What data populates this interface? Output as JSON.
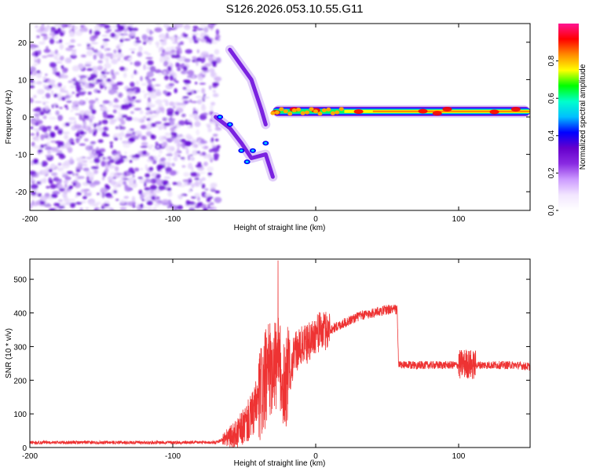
{
  "title": "S126.2026.053.10.55.G11",
  "colors": {
    "axis": "#000000",
    "snr_line": "#ee3333",
    "colorbar": [
      "#ffffff",
      "#f2e6ff",
      "#cc99ff",
      "#8a2be2",
      "#6600cc",
      "#0000ff",
      "#00bfff",
      "#00ffcc",
      "#00ff00",
      "#ffff00",
      "#ff8c00",
      "#ff0000",
      "#ff1493"
    ]
  },
  "chart_data": [
    {
      "type": "heatmap",
      "name": "spectrogram",
      "xlabel": "Height of straight line (km)",
      "ylabel": "Frequency (Hz)",
      "xlim": [
        -200,
        150
      ],
      "ylim": [
        -25,
        25
      ],
      "xticks": [
        -200,
        -100,
        0,
        100
      ],
      "yticks": [
        -20,
        -10,
        0,
        10,
        20
      ],
      "xtick_labels": [
        "-200",
        "-100",
        "0",
        "100"
      ],
      "ytick_labels": [
        "-20",
        "-10",
        "0",
        "10",
        "20"
      ],
      "colorbar": {
        "label": "Normalized spectral amplitude",
        "range": [
          0,
          1
        ],
        "ticks": [
          0,
          0.2,
          0.4,
          0.6,
          0.8
        ],
        "tick_labels": [
          "0.0",
          "0.2",
          "0.4",
          "0.6",
          "0.8"
        ]
      },
      "features": {
        "noise_region_x": [
          -200,
          -68
        ],
        "tone_center_hz": 1.5,
        "tone_x": [
          -30,
          150
        ],
        "upper_branch": [
          [
            -60,
            18
          ],
          [
            -45,
            10
          ],
          [
            -38,
            2
          ],
          [
            -35,
            -2
          ]
        ],
        "lower_branch": [
          [
            -70,
            0
          ],
          [
            -60,
            -3
          ],
          [
            -52,
            -7
          ],
          [
            -45,
            -11
          ],
          [
            -35,
            -10
          ],
          [
            -30,
            -16
          ]
        ],
        "tone_hotspots_x": [
          -28,
          -15,
          0,
          30,
          75,
          85,
          92,
          125,
          140
        ]
      }
    },
    {
      "type": "line",
      "name": "snr",
      "xlabel": "Height of straight line (km)",
      "ylabel": "SNR (10 * v/v)",
      "xlim": [
        -200,
        150
      ],
      "ylim": [
        0,
        560
      ],
      "xticks": [
        -200,
        -100,
        0,
        100
      ],
      "yticks": [
        0,
        100,
        200,
        300,
        400,
        500
      ],
      "xtick_labels": [
        "-200",
        "-100",
        "0",
        "100"
      ],
      "ytick_labels": [
        "0",
        "100",
        "200",
        "300",
        "400",
        "500"
      ],
      "series": [
        {
          "name": "SNR",
          "x": [
            -200,
            -150,
            -100,
            -70,
            -55,
            -45,
            -40,
            -35,
            -30,
            -25,
            -22,
            -18,
            -15,
            -10,
            -5,
            0,
            10,
            20,
            30,
            40,
            50,
            55,
            57,
            58,
            60,
            70,
            80,
            90,
            100,
            105,
            110,
            120,
            130,
            140,
            150
          ],
          "values": [
            15,
            15,
            15,
            15,
            40,
            90,
            140,
            200,
            260,
            230,
            200,
            220,
            280,
            300,
            310,
            340,
            350,
            370,
            390,
            400,
            410,
            410,
            410,
            245,
            245,
            245,
            245,
            245,
            245,
            250,
            245,
            245,
            245,
            245,
            240
          ]
        }
      ]
    }
  ]
}
